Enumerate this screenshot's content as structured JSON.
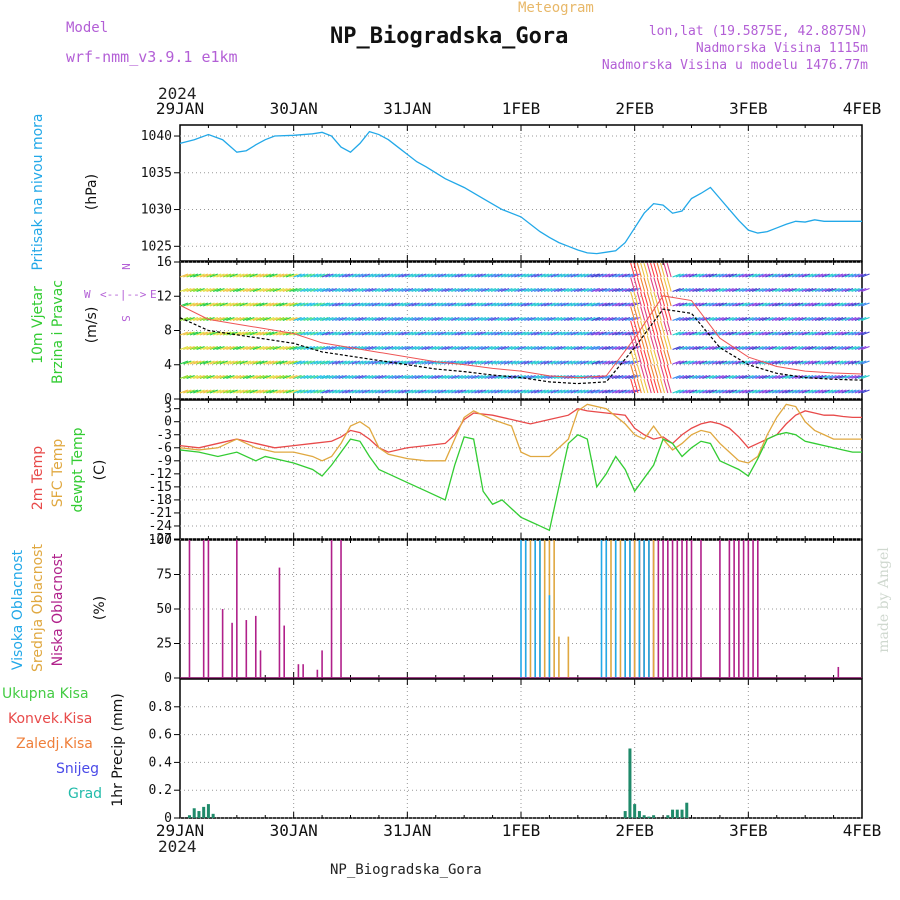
{
  "header": {
    "model_label": "Model",
    "model_value": "wrf-nmm_v3.9.1  e1km",
    "meteogram": "Meteogram",
    "title": "NP_Biogradska_Gora",
    "location": "lon,lat (19.5875E, 42.8875N)",
    "altitude": "Nadmorska Visina 1115m",
    "model_altitude": "Nadmorska Visina u modelu 1476.77m",
    "footer": "NP_Biogradska_Gora",
    "credit": "made by Angel",
    "year": "2024"
  },
  "colors": {
    "pressure": "#22a8e8",
    "temp2m": "#e84a4a",
    "sfc": "#e0a840",
    "dew": "#33cc33",
    "high_cloud": "#22a8e8",
    "mid_cloud": "#e0a840",
    "low_cloud": "#b0208a",
    "total_precip": "#44cc44",
    "conv_precip": "#e84a4a",
    "frz_precip": "#ef7f3a",
    "snow": "#4a4ae8",
    "hail": "#22bbaa",
    "precip_bar": "#1f8a6a"
  },
  "panel_labels": {
    "pressure": {
      "left": "Pritisak na nivou mora",
      "unit": "(hPa)"
    },
    "wind": {
      "left1": "10m Vjetar",
      "left2": "Brzina i Pravac",
      "unit": "(m/s)"
    },
    "compass": {
      "n": "N",
      "s": "S",
      "e": "E",
      "w": "W"
    },
    "temp": {
      "l1": "2m Temp",
      "l2": "SFC Temp",
      "l3": "dewpt Temp",
      "unit": "(C)"
    },
    "cloud": {
      "l1": "Visoka Oblacnost",
      "l2": "Srednja Oblacnost",
      "l3": "Niska Oblacnost",
      "unit": "(%)"
    },
    "precip": {
      "l1": "Ukupna Kisa",
      "l2": "Konvek.Kisa",
      "l3": "Zaledj.Kisa",
      "l4": "Snijeg",
      "l5": "Grad",
      "unit": "1hr Precip (mm)"
    }
  },
  "chart_data": [
    {
      "type": "line",
      "panel": "pressure",
      "x_ticks": [
        "29JAN",
        "30JAN",
        "31JAN",
        "1FEB",
        "2FEB",
        "3FEB",
        "4FEB"
      ],
      "x_unit": "hours since 29JAN 00",
      "xlim": [
        0,
        144
      ],
      "ylim": [
        1023,
        1041.5
      ],
      "y_ticks": [
        1025,
        1030,
        1035,
        1040
      ],
      "grid": true,
      "series": [
        {
          "x": [
            0,
            3,
            6,
            9,
            12,
            14,
            16,
            18,
            20,
            24,
            28,
            30,
            32,
            34,
            36,
            38,
            40,
            42,
            44,
            46,
            48,
            50,
            52,
            54,
            56,
            60,
            64,
            68,
            72,
            76,
            78,
            80,
            82,
            84,
            86,
            88,
            90,
            92,
            94,
            96,
            98,
            100,
            102,
            104,
            106,
            108,
            110,
            112,
            114,
            116,
            118,
            120,
            122,
            124,
            126,
            128,
            130,
            132,
            134,
            136,
            138,
            140,
            142,
            144
          ],
          "values": [
            1039,
            1039.5,
            1040.2,
            1039.5,
            1037.8,
            1038,
            1038.8,
            1039.5,
            1040,
            1040.1,
            1040.3,
            1040.5,
            1040,
            1038.5,
            1037.8,
            1039,
            1040.6,
            1040.2,
            1039.5,
            1038.5,
            1037.5,
            1036.5,
            1035.8,
            1035,
            1034.2,
            1033,
            1031.5,
            1030,
            1029,
            1027,
            1026.2,
            1025.5,
            1025,
            1024.5,
            1024.1,
            1024,
            1024.2,
            1024.4,
            1025.5,
            1027.5,
            1029.5,
            1030.8,
            1030.6,
            1029.5,
            1029.8,
            1031.5,
            1032.2,
            1033,
            1031.5,
            1030,
            1028.5,
            1027.2,
            1026.8,
            1027,
            1027.5,
            1028,
            1028.4,
            1028.3,
            1028.6,
            1028.4,
            1028.4,
            1028.4,
            1028.4,
            1028.4
          ]
        }
      ]
    },
    {
      "type": "line",
      "panel": "wind",
      "xlim": [
        0,
        144
      ],
      "ylim": [
        0,
        16
      ],
      "y_ticks": [
        0,
        4,
        8,
        12,
        16
      ],
      "grid": true,
      "series": [
        {
          "x": [
            0,
            6,
            12,
            18,
            24,
            30,
            36,
            42,
            48,
            54,
            60,
            66,
            72,
            78,
            84,
            90,
            96,
            102,
            108,
            114,
            120,
            126,
            132,
            138,
            144
          ],
          "values": [
            9.5,
            8,
            7.5,
            7,
            6.5,
            5.5,
            5,
            4.5,
            4,
            3.5,
            3.2,
            2.8,
            2.5,
            2,
            1.8,
            2,
            6,
            10.5,
            10,
            6,
            4,
            3,
            2.5,
            2.3,
            2.2
          ]
        }
      ]
    },
    {
      "type": "line",
      "panel": "temperature",
      "xlim": [
        0,
        144
      ],
      "ylim": [
        -27,
        5
      ],
      "y_ticks": [
        -27,
        -24,
        -21,
        -18,
        -15,
        -12,
        -9,
        -6,
        -3,
        0,
        3
      ],
      "grid": true,
      "series": [
        {
          "name": "2m Temp",
          "key": "temp2m",
          "x": [
            0,
            4,
            8,
            12,
            16,
            20,
            24,
            28,
            32,
            34,
            36,
            38,
            40,
            42,
            44,
            48,
            52,
            56,
            58,
            60,
            62,
            66,
            70,
            72,
            74,
            78,
            82,
            84,
            86,
            90,
            94,
            96,
            98,
            100,
            102,
            104,
            106,
            108,
            110,
            112,
            114,
            116,
            118,
            120,
            122,
            124,
            126,
            128,
            130,
            132,
            134,
            136,
            138,
            140,
            142,
            144
          ],
          "values": [
            -5.5,
            -6,
            -5,
            -4,
            -5,
            -6,
            -5.5,
            -5,
            -4.5,
            -3.5,
            -2,
            -2.5,
            -4,
            -6,
            -7,
            -6,
            -5.5,
            -5,
            -3,
            0.5,
            2,
            1.5,
            0.5,
            0,
            -0.5,
            0.5,
            1.5,
            3,
            2.5,
            2,
            1.5,
            -1.5,
            -3,
            -4,
            -3.5,
            -5,
            -3,
            -1.5,
            -0.5,
            0,
            -0.5,
            -1.5,
            -3.5,
            -6,
            -5,
            -4,
            -3,
            -0.5,
            1.5,
            2.5,
            2,
            1.5,
            1.5,
            1.2,
            1,
            1
          ]
        },
        {
          "name": "SFC Temp",
          "key": "sfc",
          "x": [
            0,
            4,
            8,
            12,
            16,
            20,
            24,
            28,
            30,
            32,
            34,
            36,
            38,
            40,
            42,
            44,
            48,
            52,
            56,
            58,
            60,
            62,
            66,
            70,
            72,
            74,
            78,
            82,
            84,
            86,
            90,
            94,
            96,
            98,
            100,
            102,
            104,
            106,
            108,
            110,
            112,
            114,
            116,
            118,
            120,
            122,
            124,
            126,
            128,
            130,
            132,
            134,
            136,
            138,
            140,
            142,
            144
          ],
          "values": [
            -6,
            -6.5,
            -6,
            -4,
            -6,
            -7,
            -7,
            -8,
            -9,
            -8,
            -5,
            -1,
            0,
            -1.5,
            -6,
            -7.5,
            -8.5,
            -9,
            -9,
            -4,
            1,
            2.5,
            0.5,
            -1,
            -7,
            -8,
            -8,
            -4,
            2.5,
            4,
            3,
            -0.5,
            -3,
            -4,
            -1,
            -4,
            -6.5,
            -5,
            -3,
            -2,
            -2.5,
            -5,
            -7,
            -9,
            -9.5,
            -8,
            -3,
            1,
            4,
            3.5,
            0,
            -2,
            -3,
            -4,
            -4,
            -4,
            -4
          ]
        },
        {
          "name": "dewpt Temp",
          "key": "dew",
          "x": [
            0,
            4,
            8,
            12,
            16,
            18,
            20,
            24,
            28,
            30,
            32,
            34,
            36,
            38,
            40,
            42,
            44,
            48,
            52,
            56,
            58,
            60,
            62,
            64,
            66,
            68,
            70,
            72,
            74,
            76,
            78,
            80,
            82,
            84,
            86,
            88,
            90,
            92,
            94,
            96,
            98,
            100,
            102,
            104,
            106,
            108,
            110,
            112,
            114,
            116,
            118,
            120,
            122,
            124,
            126,
            128,
            130,
            132,
            134,
            136,
            138,
            140,
            142,
            144
          ],
          "values": [
            -6.5,
            -7,
            -8,
            -7,
            -9,
            -8,
            -8.5,
            -9.5,
            -11,
            -12.5,
            -10,
            -7,
            -4,
            -4.5,
            -8,
            -11,
            -12,
            -14,
            -16,
            -18,
            -10,
            -3.5,
            -4,
            -16,
            -19,
            -18,
            -20,
            -22,
            -23,
            -24,
            -25,
            -15,
            -5,
            -3,
            -4,
            -15,
            -12,
            -8,
            -11,
            -16,
            -13,
            -10,
            -4,
            -5,
            -8,
            -6,
            -4.5,
            -5,
            -9,
            -10,
            -11,
            -12.5,
            -8.5,
            -4,
            -3,
            -2.5,
            -3,
            -4.5,
            -5,
            -5.5,
            -6,
            -6.5,
            -7,
            -7
          ]
        }
      ]
    },
    {
      "type": "bar",
      "panel": "cloud",
      "xlim": [
        0,
        144
      ],
      "ylim": [
        0,
        100
      ],
      "y_ticks": [
        0,
        25,
        50,
        75,
        100
      ],
      "grid": true,
      "series": [
        {
          "name": "Niska Oblacnost",
          "key": "low_cloud",
          "x": [
            2,
            5,
            6,
            9,
            11,
            12,
            14,
            16,
            17,
            21,
            22,
            25,
            26,
            29,
            30,
            32,
            34,
            96,
            97,
            98,
            99,
            100,
            101,
            102,
            103,
            104,
            105,
            106,
            107,
            108,
            110,
            114,
            116,
            117,
            118,
            119,
            120,
            121,
            122,
            139
          ],
          "values": [
            100,
            100,
            100,
            50,
            40,
            100,
            42,
            45,
            20,
            80,
            38,
            10,
            10,
            6,
            20,
            100,
            100,
            100,
            100,
            100,
            100,
            100,
            100,
            100,
            100,
            100,
            100,
            100,
            100,
            100,
            100,
            100,
            100,
            100,
            100,
            100,
            100,
            100,
            100,
            8
          ]
        },
        {
          "name": "Srednja Oblacnost",
          "key": "mid_cloud",
          "x": [
            73,
            74,
            75,
            76,
            77,
            78,
            79,
            80,
            82,
            90,
            91,
            92,
            93,
            94,
            95,
            96,
            97,
            98,
            99,
            100
          ],
          "values": [
            100,
            100,
            100,
            100,
            100,
            100,
            100,
            30,
            30,
            100,
            100,
            100,
            100,
            100,
            100,
            100,
            100,
            100,
            100,
            100
          ]
        },
        {
          "name": "Visoka Oblacnost",
          "key": "high_cloud",
          "x": [
            72,
            73,
            75,
            76,
            78,
            89,
            90,
            92,
            94,
            95,
            97,
            98,
            99
          ],
          "values": [
            100,
            100,
            100,
            100,
            60,
            100,
            100,
            100,
            100,
            100,
            100,
            100,
            100
          ]
        }
      ]
    },
    {
      "type": "bar",
      "panel": "precipitation",
      "xlim": [
        0,
        144
      ],
      "ylim": [
        0,
        1.0
      ],
      "y_ticks": [
        0,
        0.2,
        0.4,
        0.6,
        0.8
      ],
      "grid": true,
      "series": [
        {
          "name": "Ukupna Kisa",
          "key": "precip_bar",
          "x": [
            2,
            3,
            4,
            5,
            6,
            7,
            94,
            95,
            96,
            97,
            98,
            99,
            100,
            103,
            104,
            105,
            106,
            107
          ],
          "values": [
            0.02,
            0.07,
            0.05,
            0.08,
            0.1,
            0.03,
            0.05,
            0.5,
            0.1,
            0.05,
            0.02,
            0.01,
            0.02,
            0.02,
            0.06,
            0.06,
            0.06,
            0.11
          ]
        }
      ]
    }
  ]
}
